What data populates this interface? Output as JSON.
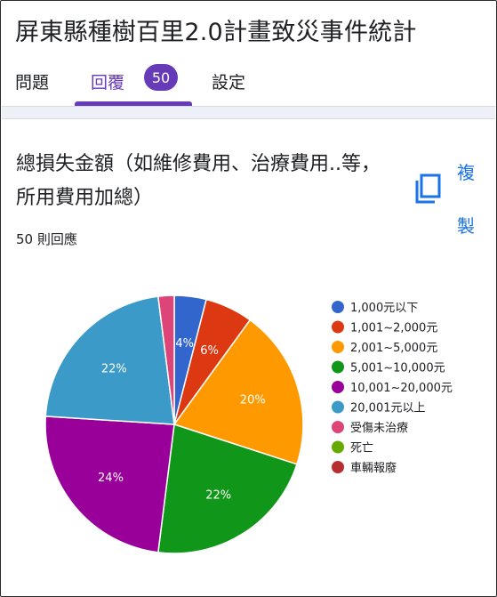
{
  "header": {
    "title": "屏東縣種樹百里2.0計畫致災事件統計"
  },
  "tabs": {
    "questions": "問題",
    "responses": "回覆",
    "responses_badge": "50",
    "settings": "設定"
  },
  "question": {
    "title": "總損失金額（如維修費用、治療費用..等，所用費用加總）",
    "response_count": "50 則回應",
    "copy_label": "複製"
  },
  "chart_data": {
    "type": "pie",
    "categories": [
      "1,000元以下",
      "1,001~2,000元",
      "2,001~5,000元",
      "5,001~10,000元",
      "10,001~20,000元",
      "20,001元以上",
      "受傷未治療",
      "死亡",
      "車輛報廢"
    ],
    "values": [
      4,
      6,
      20,
      22,
      24,
      22,
      2,
      0,
      0
    ],
    "labels": [
      "4%",
      "6%",
      "20%",
      "22%",
      "24%",
      "22%",
      "",
      "",
      ""
    ],
    "colors": [
      "#3366cc",
      "#dc3912",
      "#ff9900",
      "#109618",
      "#990099",
      "#3b9ac7",
      "#dd4477",
      "#66aa00",
      "#b82e2e"
    ],
    "legend_position": "right"
  }
}
